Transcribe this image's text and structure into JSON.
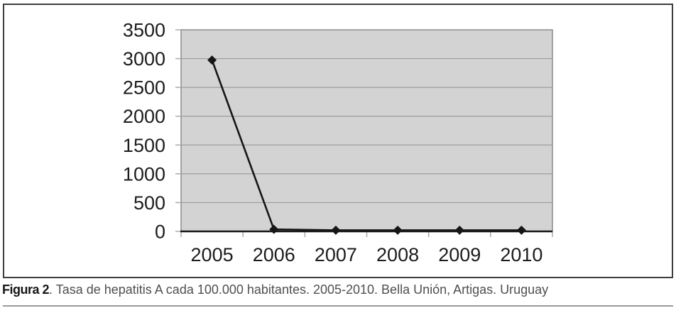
{
  "figure": {
    "caption": {
      "label": "Figura 2",
      "text": ". Tasa de hepatitis A cada 100.000 habitantes. 2005-2010. Bella Unión, Artigas. Uruguay"
    }
  },
  "chart_data": {
    "type": "line",
    "categories": [
      "2005",
      "2006",
      "2007",
      "2008",
      "2009",
      "2010"
    ],
    "values": [
      2975,
      35,
      20,
      20,
      20,
      20
    ],
    "title": "",
    "xlabel": "",
    "ylabel": "",
    "ylim": [
      0,
      3500
    ],
    "yticks": [
      0,
      500,
      1000,
      1500,
      2000,
      2500,
      3000,
      3500
    ],
    "grid": true,
    "legend": false,
    "marker": "diamond",
    "colors": {
      "plot_fill": "#d3d3d3",
      "plot_border": "#8c8c8c",
      "gridline": "#9c9c9c",
      "series": "#161616",
      "axis_line": "#161616",
      "tick": "#aaaaaa",
      "axis_label": "#1c1c1c"
    }
  }
}
